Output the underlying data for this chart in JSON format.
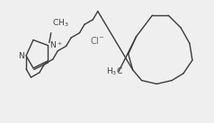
{
  "background_color": "#efefef",
  "bond_color": "#3a3a3a",
  "text_color": "#3a3a3a",
  "figsize": [
    2.38,
    1.37
  ],
  "dpi": 100,
  "ch3_label": "CH$_3$",
  "n_plus_label": "N$^+$",
  "n_label": "N",
  "cl_label": "Cl$^{-}$",
  "h3c_label": "H$_3$C"
}
